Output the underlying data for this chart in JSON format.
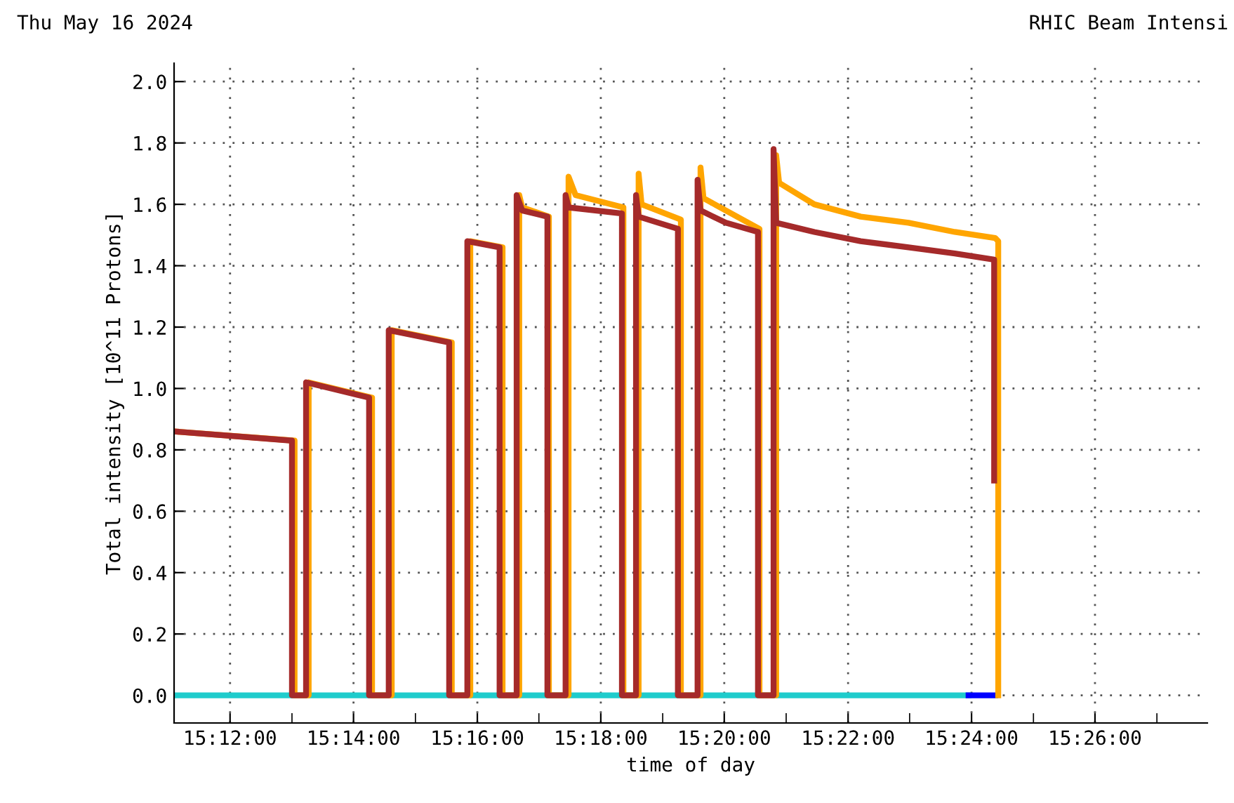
{
  "chart_data": {
    "type": "line",
    "title": "RHIC Beam Intensi",
    "subtitle": "Thu May 16 2024",
    "xlabel": "time of day",
    "ylabel": "Total intensity [10^11 Protons]",
    "xlim": [
      15.1849,
      15.4636
    ],
    "ylim": [
      -0.09,
      2.06
    ],
    "xticks": [
      {
        "value": 15.2,
        "label": "15:12:00"
      },
      {
        "value": 15.2167,
        "label": null
      },
      {
        "value": 15.2333,
        "label": "15:14:00"
      },
      {
        "value": 15.25,
        "label": null
      },
      {
        "value": 15.2667,
        "label": "15:16:00"
      },
      {
        "value": 15.2833,
        "label": null
      },
      {
        "value": 15.3,
        "label": "15:18:00"
      },
      {
        "value": 15.3167,
        "label": null
      },
      {
        "value": 15.3333,
        "label": "15:20:00"
      },
      {
        "value": 15.35,
        "label": null
      },
      {
        "value": 15.3667,
        "label": "15:22:00"
      },
      {
        "value": 15.3833,
        "label": null
      },
      {
        "value": 15.4,
        "label": "15:24:00"
      },
      {
        "value": 15.4167,
        "label": null
      },
      {
        "value": 15.4333,
        "label": "15:26:00"
      },
      {
        "value": 15.45,
        "label": null
      }
    ],
    "yticks": [
      {
        "value": 0,
        "label": "0.0"
      },
      {
        "value": 0.2,
        "label": "0.2"
      },
      {
        "value": 0.4,
        "label": "0.4"
      },
      {
        "value": 0.6,
        "label": "0.6"
      },
      {
        "value": 0.8,
        "label": "0.8"
      },
      {
        "value": 1.0,
        "label": "1.0"
      },
      {
        "value": 1.2,
        "label": "1.2"
      },
      {
        "value": 1.4,
        "label": "1.4"
      },
      {
        "value": 1.6,
        "label": "1.6"
      },
      {
        "value": 1.8,
        "label": "1.8"
      },
      {
        "value": 2.0,
        "label": "2.0"
      }
    ],
    "grid": true,
    "line_style": "solid",
    "marker": "none",
    "series": [
      {
        "color": "#1fcccc",
        "x": [
          15.1849,
          15.3992
        ],
        "values": [
          0,
          0
        ]
      },
      {
        "color": "#0000ff",
        "x": [
          15.3992,
          15.4064
        ],
        "values": [
          0,
          0
        ]
      },
      {
        "color": "#ffa500",
        "x": [
          15.1849,
          15.2174,
          15.2174,
          15.2212,
          15.2212,
          15.2383,
          15.2383,
          15.2436,
          15.2436,
          15.2598,
          15.2598,
          15.2648,
          15.2648,
          15.2735,
          15.2735,
          15.278,
          15.278,
          15.2788,
          15.286,
          15.286,
          15.2913,
          15.2913,
          15.2932,
          15.3061,
          15.3061,
          15.3102,
          15.3102,
          15.311,
          15.3216,
          15.3216,
          15.3269,
          15.3269,
          15.3277,
          15.3428,
          15.3428,
          15.3473,
          15.3473,
          15.3481,
          15.3576,
          15.3701,
          15.383,
          15.3955,
          15.4064,
          15.4072,
          15.4072
        ],
        "values": [
          0.86,
          0.83,
          0,
          0,
          1.02,
          0.97,
          0,
          0,
          1.19,
          1.15,
          0,
          0,
          1.48,
          1.46,
          0,
          0,
          1.63,
          1.59,
          1.56,
          0,
          0,
          1.69,
          1.63,
          1.59,
          0,
          0,
          1.7,
          1.6,
          1.55,
          0,
          0,
          1.72,
          1.62,
          1.52,
          0,
          0,
          1.76,
          1.67,
          1.6,
          1.56,
          1.54,
          1.51,
          1.49,
          1.48,
          0
        ]
      },
      {
        "color": "#a52a2a",
        "x": [
          15.1849,
          15.2167,
          15.2167,
          15.2205,
          15.2205,
          15.2375,
          15.2375,
          15.2428,
          15.2428,
          15.2591,
          15.2591,
          15.264,
          15.264,
          15.2727,
          15.2727,
          15.2773,
          15.2773,
          15.2788,
          15.2856,
          15.2856,
          15.2905,
          15.2905,
          15.2913,
          15.3057,
          15.3057,
          15.3095,
          15.3095,
          15.3102,
          15.3208,
          15.3208,
          15.3261,
          15.3261,
          15.3269,
          15.3337,
          15.3424,
          15.3424,
          15.3466,
          15.3466,
          15.3473,
          15.3576,
          15.3701,
          15.383,
          15.3955,
          15.4061,
          15.4061
        ],
        "values": [
          0.86,
          0.83,
          0,
          0,
          1.02,
          0.97,
          0,
          0,
          1.19,
          1.15,
          0,
          0,
          1.48,
          1.46,
          0,
          0,
          1.63,
          1.58,
          1.56,
          0,
          0,
          1.63,
          1.59,
          1.57,
          0,
          0,
          1.63,
          1.56,
          1.52,
          0,
          0,
          1.68,
          1.58,
          1.54,
          1.51,
          0,
          0,
          1.78,
          1.54,
          1.51,
          1.48,
          1.46,
          1.44,
          1.42,
          0.7
        ]
      }
    ]
  }
}
